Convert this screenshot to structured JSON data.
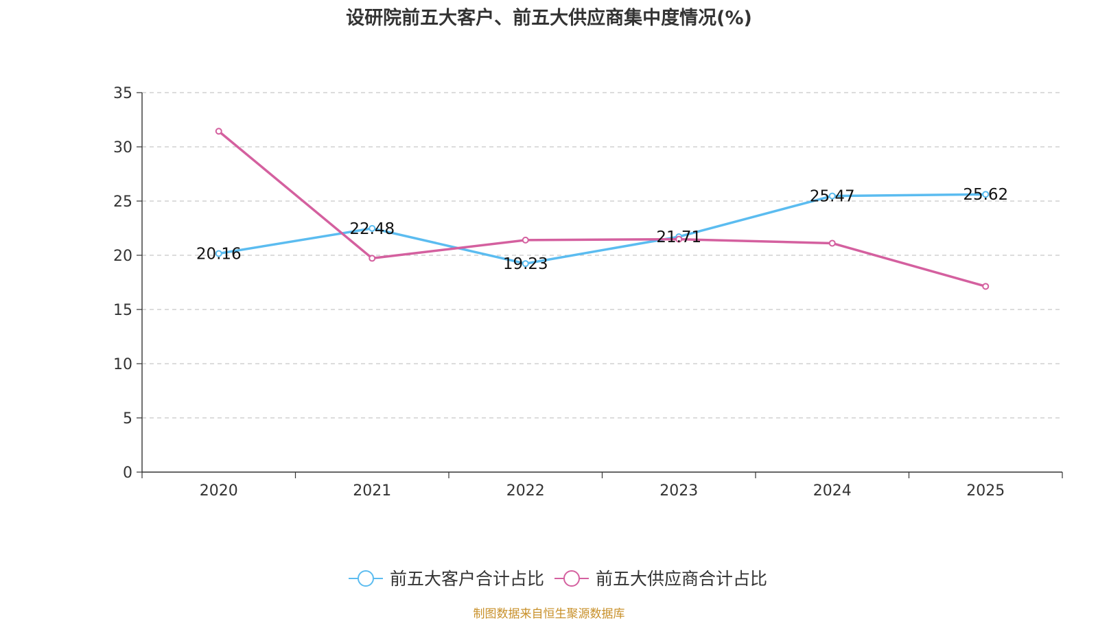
{
  "chart_data": {
    "type": "line",
    "title": "设研院前五大客户、前五大供应商集中度情况(%)",
    "categories": [
      "2020",
      "2021",
      "2022",
      "2023",
      "2024",
      "2025"
    ],
    "ylim": [
      0,
      35
    ],
    "yticks": [
      0,
      5,
      10,
      15,
      20,
      25,
      30,
      35
    ],
    "ytick_labels": [
      "0",
      "5",
      "10",
      "15",
      "20",
      "25",
      "30",
      "35"
    ],
    "grid": true,
    "legend_position": "bottom-center",
    "series": [
      {
        "name": "前五大客户合计占比",
        "color": "#5bbcf0",
        "values": [
          20.16,
          22.48,
          19.23,
          21.71,
          25.47,
          25.62
        ],
        "labels": [
          "20.16",
          "22.48",
          "19.23",
          "21.71",
          "25.47",
          "25.62"
        ]
      },
      {
        "name": "前五大供应商合计占比",
        "color": "#d4609f",
        "values": [
          31.44,
          19.72,
          21.4,
          21.48,
          21.11,
          17.13
        ]
      }
    ],
    "source": "制图数据来自恒生聚源数据库"
  }
}
